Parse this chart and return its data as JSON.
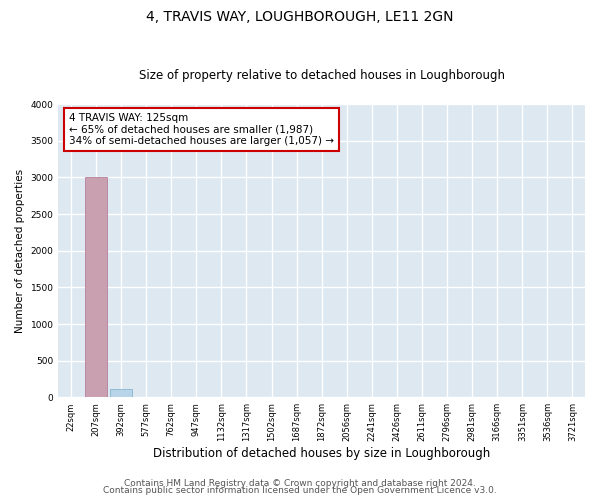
{
  "title": "4, TRAVIS WAY, LOUGHBOROUGH, LE11 2GN",
  "subtitle": "Size of property relative to detached houses in Loughborough",
  "xlabel": "Distribution of detached houses by size in Loughborough",
  "ylabel": "Number of detached properties",
  "bin_labels": [
    "22sqm",
    "207sqm",
    "392sqm",
    "577sqm",
    "762sqm",
    "947sqm",
    "1132sqm",
    "1317sqm",
    "1502sqm",
    "1687sqm",
    "1872sqm",
    "2056sqm",
    "2241sqm",
    "2426sqm",
    "2611sqm",
    "2796sqm",
    "2981sqm",
    "3166sqm",
    "3351sqm",
    "3536sqm",
    "3721sqm"
  ],
  "bar_heights": [
    0,
    3000,
    120,
    0,
    0,
    0,
    0,
    0,
    0,
    0,
    0,
    0,
    0,
    0,
    0,
    0,
    0,
    0,
    0,
    0,
    0
  ],
  "bar_color": "#b8d4e8",
  "bar_edge_color": "#7aaec8",
  "tall_bar_color": "#c8a0b0",
  "tall_bar_edge": "#b07090",
  "tall_bar_index": 1,
  "ylim": [
    0,
    4000
  ],
  "yticks": [
    0,
    500,
    1000,
    1500,
    2000,
    2500,
    3000,
    3500,
    4000
  ],
  "annotation_line1": "4 TRAVIS WAY: 125sqm",
  "annotation_line2": "← 65% of detached houses are smaller (1,987)",
  "annotation_line3": "34% of semi-detached houses are larger (1,057) →",
  "annotation_box_facecolor": "#ffffff",
  "annotation_box_edgecolor": "#cc0000",
  "footer_line1": "Contains HM Land Registry data © Crown copyright and database right 2024.",
  "footer_line2": "Contains public sector information licensed under the Open Government Licence v3.0.",
  "fig_facecolor": "#ffffff",
  "plot_facecolor": "#dde8f0",
  "grid_color": "#ffffff",
  "title_fontsize": 10,
  "subtitle_fontsize": 8.5,
  "tick_fontsize": 6,
  "ylabel_fontsize": 7.5,
  "xlabel_fontsize": 8.5,
  "footer_fontsize": 6.5,
  "annot_fontsize": 7.5
}
